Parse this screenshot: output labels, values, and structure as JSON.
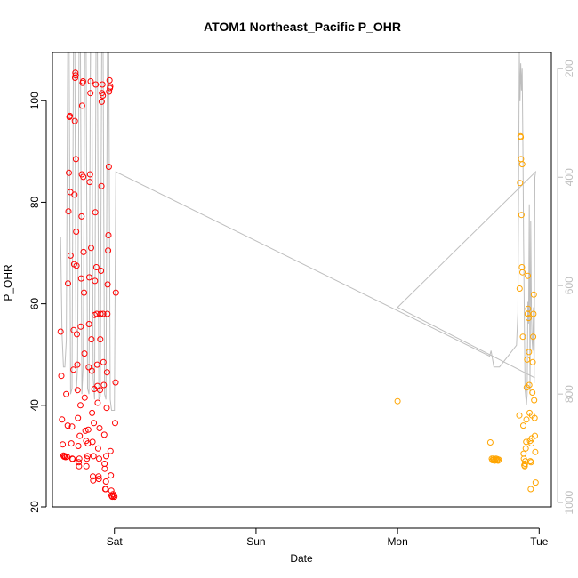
{
  "chart_data": {
    "type": "scatter",
    "title": "ATOM1 Northeast_Pacific P_OHR",
    "xlabel": "Date",
    "ylabel": "P_OHR",
    "x_ticks": [
      {
        "label": "Sat",
        "value": 0
      },
      {
        "label": "Sun",
        "value": 1
      },
      {
        "label": "Mon",
        "value": 2
      },
      {
        "label": "Tue",
        "value": 3
      }
    ],
    "xlim": [
      -0.438,
      3.086
    ],
    "ylim": [
      20,
      109.5
    ],
    "y_ticks": [
      20,
      40,
      60,
      80,
      100
    ],
    "secondary_axis": {
      "side": "right",
      "range": [
        1008,
        170
      ],
      "ticks": [
        200,
        400,
        600,
        800,
        1000
      ],
      "color": "#bebebe"
    },
    "colors": {
      "red_points": "#ff0000",
      "orange_points": "#ffa500",
      "line": "#bebebe"
    },
    "series": [
      {
        "color": "#ff0000",
        "points": [
          [
            -0.38,
            54.5
          ],
          [
            -0.375,
            45.8
          ],
          [
            -0.37,
            37.2
          ],
          [
            -0.365,
            32.3
          ],
          [
            -0.36,
            30.1
          ],
          [
            -0.355,
            29.9
          ],
          [
            -0.35,
            30.0
          ],
          [
            -0.345,
            29.8
          ],
          [
            -0.34,
            42.2
          ],
          [
            -0.335,
            29.9
          ],
          [
            -0.33,
            36.0
          ],
          [
            -0.328,
            64.0
          ],
          [
            -0.325,
            78.2
          ],
          [
            -0.322,
            85.8
          ],
          [
            -0.318,
            96.8
          ],
          [
            -0.315,
            97.0
          ],
          [
            -0.312,
            82.0
          ],
          [
            -0.31,
            69.5
          ],
          [
            -0.305,
            32.5
          ],
          [
            -0.3,
            35.8
          ],
          [
            -0.298,
            29.5
          ],
          [
            -0.295,
            29.4
          ],
          [
            -0.29,
            47.0
          ],
          [
            -0.288,
            54.8
          ],
          [
            -0.285,
            67.8
          ],
          [
            -0.282,
            81.5
          ],
          [
            -0.28,
            96.0
          ],
          [
            -0.278,
            104.5
          ],
          [
            -0.276,
            105.5
          ],
          [
            -0.274,
            105.0
          ],
          [
            -0.272,
            88.5
          ],
          [
            -0.27,
            74.2
          ],
          [
            -0.268,
            67.5
          ],
          [
            -0.265,
            54.0
          ],
          [
            -0.262,
            48.0
          ],
          [
            -0.26,
            43.0
          ],
          [
            -0.258,
            37.5
          ],
          [
            -0.255,
            32.0
          ],
          [
            -0.252,
            28.8
          ],
          [
            -0.25,
            28.0
          ],
          [
            -0.248,
            29.5
          ],
          [
            -0.245,
            34.0
          ],
          [
            -0.24,
            40.0
          ],
          [
            -0.238,
            55.5
          ],
          [
            -0.235,
            65.0
          ],
          [
            -0.232,
            77.2
          ],
          [
            -0.23,
            85.5
          ],
          [
            -0.228,
            99.0
          ],
          [
            -0.225,
            103.5
          ],
          [
            -0.222,
            103.8
          ],
          [
            -0.22,
            85.0
          ],
          [
            -0.218,
            70.2
          ],
          [
            -0.215,
            62.2
          ],
          [
            -0.212,
            50.2
          ],
          [
            -0.21,
            41.5
          ],
          [
            -0.205,
            35.0
          ],
          [
            -0.2,
            33.0
          ],
          [
            -0.198,
            28.0
          ],
          [
            -0.195,
            29.5
          ],
          [
            -0.19,
            30.0
          ],
          [
            -0.188,
            32.5
          ],
          [
            -0.185,
            35.2
          ],
          [
            -0.182,
            47.5
          ],
          [
            -0.18,
            56.0
          ],
          [
            -0.178,
            65.2
          ],
          [
            -0.175,
            84.0
          ],
          [
            -0.172,
            85.5
          ],
          [
            -0.17,
            101.5
          ],
          [
            -0.168,
            103.8
          ],
          [
            -0.165,
            71.0
          ],
          [
            -0.162,
            53.0
          ],
          [
            -0.16,
            46.8
          ],
          [
            -0.158,
            38.5
          ],
          [
            -0.155,
            32.8
          ],
          [
            -0.152,
            26.0
          ],
          [
            -0.15,
            25.2
          ],
          [
            -0.148,
            30.0
          ],
          [
            -0.145,
            36.5
          ],
          [
            -0.142,
            43.2
          ],
          [
            -0.14,
            57.8
          ],
          [
            -0.138,
            64.5
          ],
          [
            -0.135,
            78.0
          ],
          [
            -0.132,
            103.2
          ],
          [
            -0.128,
            67.2
          ],
          [
            -0.125,
            58.0
          ],
          [
            -0.122,
            48.0
          ],
          [
            -0.12,
            43.8
          ],
          [
            -0.118,
            40.5
          ],
          [
            -0.115,
            31.5
          ],
          [
            -0.112,
            26.0
          ],
          [
            -0.11,
            25.5
          ],
          [
            -0.108,
            29.5
          ],
          [
            -0.105,
            35.5
          ],
          [
            -0.102,
            43.0
          ],
          [
            -0.1,
            53.0
          ],
          [
            -0.098,
            58.0
          ],
          [
            -0.095,
            66.5
          ],
          [
            -0.092,
            83.2
          ],
          [
            -0.09,
            99.8
          ],
          [
            -0.088,
            101.5
          ],
          [
            -0.085,
            103.2
          ],
          [
            -0.082,
            101.0
          ],
          [
            -0.08,
            58.0
          ],
          [
            -0.078,
            48.5
          ],
          [
            -0.075,
            44.0
          ],
          [
            -0.072,
            34.2
          ],
          [
            -0.07,
            28.5
          ],
          [
            -0.068,
            27.5
          ],
          [
            -0.065,
            23.5
          ],
          [
            -0.062,
            23.5
          ],
          [
            -0.06,
            25.0
          ],
          [
            -0.058,
            30.0
          ],
          [
            -0.055,
            39.5
          ],
          [
            -0.052,
            46.5
          ],
          [
            -0.05,
            58.0
          ],
          [
            -0.048,
            63.8
          ],
          [
            -0.045,
            70.5
          ],
          [
            -0.042,
            73.5
          ],
          [
            -0.04,
            87.0
          ],
          [
            -0.038,
            101.8
          ],
          [
            -0.035,
            104.0
          ],
          [
            -0.032,
            102.5
          ],
          [
            -0.03,
            102.8
          ],
          [
            -0.028,
            31.0
          ],
          [
            -0.025,
            26.2
          ],
          [
            -0.022,
            23.2
          ],
          [
            -0.02,
            22.2
          ],
          [
            -0.015,
            22.0
          ],
          [
            -0.01,
            22.5
          ],
          [
            -0.005,
            22.2
          ],
          [
            0.0,
            22.0
          ],
          [
            0.005,
            36.5
          ],
          [
            0.008,
            44.5
          ],
          [
            0.01,
            62.2
          ]
        ]
      },
      {
        "color": "#ffa500",
        "points": [
          [
            2.0,
            40.8
          ],
          [
            2.655,
            32.7
          ],
          [
            2.665,
            29.5
          ],
          [
            2.67,
            29.2
          ],
          [
            2.675,
            29.5
          ],
          [
            2.68,
            29.3
          ],
          [
            2.685,
            29.1
          ],
          [
            2.69,
            29.3
          ],
          [
            2.695,
            29.5
          ],
          [
            2.7,
            29.2
          ],
          [
            2.705,
            29.4
          ],
          [
            2.71,
            29.1
          ],
          [
            2.715,
            29.3
          ],
          [
            2.86,
            38.0
          ],
          [
            2.862,
            63.0
          ],
          [
            2.865,
            83.8
          ],
          [
            2.868,
            93.0
          ],
          [
            2.87,
            92.8
          ],
          [
            2.872,
            88.5
          ],
          [
            2.875,
            77.5
          ],
          [
            2.878,
            67.2
          ],
          [
            2.88,
            87.5
          ],
          [
            2.882,
            66.2
          ],
          [
            2.885,
            53.5
          ],
          [
            2.888,
            36.0
          ],
          [
            2.89,
            30.5
          ],
          [
            2.892,
            29.5
          ],
          [
            2.895,
            28.2
          ],
          [
            2.898,
            28.0
          ],
          [
            2.9,
            28.5
          ],
          [
            2.902,
            29.0
          ],
          [
            2.905,
            31.5
          ],
          [
            2.908,
            32.8
          ],
          [
            2.91,
            37.2
          ],
          [
            2.912,
            43.5
          ],
          [
            2.915,
            49.0
          ],
          [
            2.918,
            58.0
          ],
          [
            2.92,
            65.5
          ],
          [
            2.922,
            59.0
          ],
          [
            2.925,
            57.2
          ],
          [
            2.928,
            50.5
          ],
          [
            2.93,
            44.0
          ],
          [
            2.932,
            38.5
          ],
          [
            2.935,
            33.0
          ],
          [
            2.938,
            29.0
          ],
          [
            2.94,
            23.5
          ],
          [
            2.942,
            28.8
          ],
          [
            2.945,
            32.5
          ],
          [
            2.948,
            33.5
          ],
          [
            2.95,
            38.0
          ],
          [
            2.952,
            42.5
          ],
          [
            2.955,
            48.5
          ],
          [
            2.958,
            53.5
          ],
          [
            2.96,
            58.0
          ],
          [
            2.962,
            61.8
          ],
          [
            2.965,
            41.0
          ],
          [
            2.968,
            37.5
          ],
          [
            2.97,
            34.0
          ],
          [
            2.972,
            30.8
          ],
          [
            2.975,
            24.8
          ]
        ]
      }
    ],
    "secondary_line": {
      "color": "#bebebe",
      "points": [
        [
          -0.38,
          510
        ],
        [
          -0.37,
          690
        ],
        [
          -0.36,
          750
        ],
        [
          -0.35,
          750
        ],
        [
          -0.34,
          700
        ],
        [
          -0.33,
          130
        ],
        [
          -0.32,
          130
        ],
        [
          -0.31,
          800
        ],
        [
          -0.3,
          790
        ],
        [
          -0.29,
          130
        ],
        [
          -0.28,
          130
        ],
        [
          -0.27,
          800
        ],
        [
          -0.26,
          750
        ],
        [
          -0.25,
          130
        ],
        [
          -0.24,
          130
        ],
        [
          -0.23,
          800
        ],
        [
          -0.22,
          740
        ],
        [
          -0.21,
          130
        ],
        [
          -0.2,
          130
        ],
        [
          -0.19,
          790
        ],
        [
          -0.18,
          800
        ],
        [
          -0.17,
          130
        ],
        [
          -0.16,
          130
        ],
        [
          -0.15,
          770
        ],
        [
          -0.14,
          810
        ],
        [
          -0.13,
          130
        ],
        [
          -0.12,
          130
        ],
        [
          -0.11,
          810
        ],
        [
          -0.1,
          805
        ],
        [
          -0.09,
          130
        ],
        [
          -0.08,
          130
        ],
        [
          -0.07,
          800
        ],
        [
          -0.06,
          810
        ],
        [
          -0.05,
          130
        ],
        [
          -0.04,
          130
        ],
        [
          -0.03,
          810
        ],
        [
          -0.02,
          830
        ],
        [
          -0.01,
          830
        ],
        [
          0.0,
          830
        ],
        [
          0.005,
          600
        ],
        [
          0.01,
          390
        ],
        [
          2.65,
          730
        ],
        [
          2.66,
          720
        ],
        [
          2.68,
          750
        ],
        [
          2.7,
          750
        ],
        [
          2.72,
          750
        ],
        [
          2.84,
          710
        ],
        [
          2.85,
          650
        ],
        [
          2.86,
          100
        ],
        [
          2.865,
          260
        ],
        [
          2.87,
          190
        ],
        [
          2.875,
          240
        ],
        [
          2.88,
          200
        ],
        [
          2.885,
          340
        ],
        [
          2.89,
          520
        ],
        [
          2.9,
          790
        ],
        [
          2.91,
          820
        ],
        [
          2.915,
          800
        ],
        [
          2.92,
          630
        ],
        [
          2.925,
          670
        ],
        [
          2.93,
          450
        ],
        [
          2.935,
          800
        ],
        [
          2.94,
          480
        ],
        [
          2.945,
          650
        ],
        [
          2.95,
          700
        ],
        [
          2.955,
          720
        ],
        [
          2.96,
          640
        ],
        [
          2.965,
          780
        ],
        [
          2.97,
          400
        ],
        [
          2.975,
          390
        ],
        [
          2.0,
          640
        ],
        [
          2.97,
          770
        ]
      ]
    }
  }
}
